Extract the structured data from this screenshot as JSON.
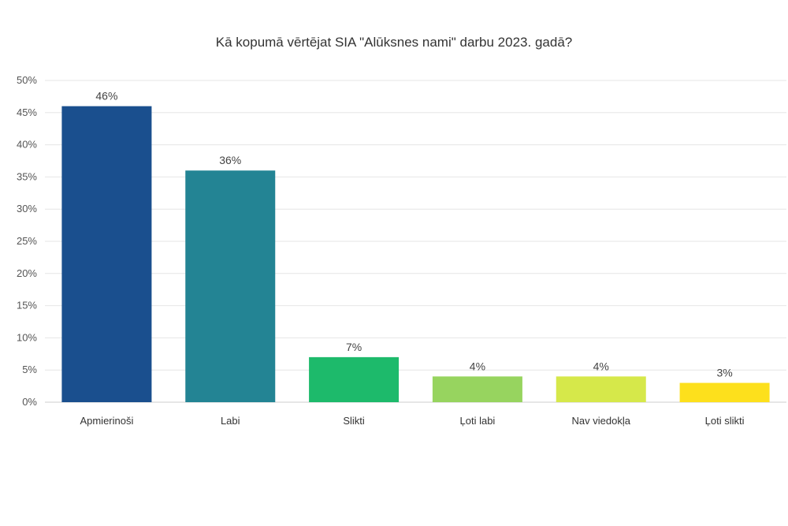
{
  "chart_data": {
    "type": "bar",
    "title": "Kā kopumā vērtējat SIA \"Alūksnes nami\" darbu 2023. gadā?",
    "categories": [
      "Apmierinoši",
      "Labi",
      "Slikti",
      "Ļoti labi",
      "Nav viedokļa",
      "Ļoti slikti"
    ],
    "values": [
      46,
      36,
      7,
      4,
      4,
      3
    ],
    "data_labels": [
      "46%",
      "36%",
      "7%",
      "4%",
      "4%",
      "3%"
    ],
    "colors": [
      "#1a4f8e",
      "#238494",
      "#1dba6b",
      "#97d45f",
      "#d6e84a",
      "#fde01c"
    ],
    "ylim": [
      0,
      50
    ],
    "y_ticks": [
      0,
      5,
      10,
      15,
      20,
      25,
      30,
      35,
      40,
      45,
      50
    ],
    "y_tick_labels": [
      "0%",
      "5%",
      "10%",
      "15%",
      "20%",
      "25%",
      "30%",
      "35%",
      "40%",
      "45%",
      "50%"
    ],
    "grid": true,
    "legend": "none"
  }
}
